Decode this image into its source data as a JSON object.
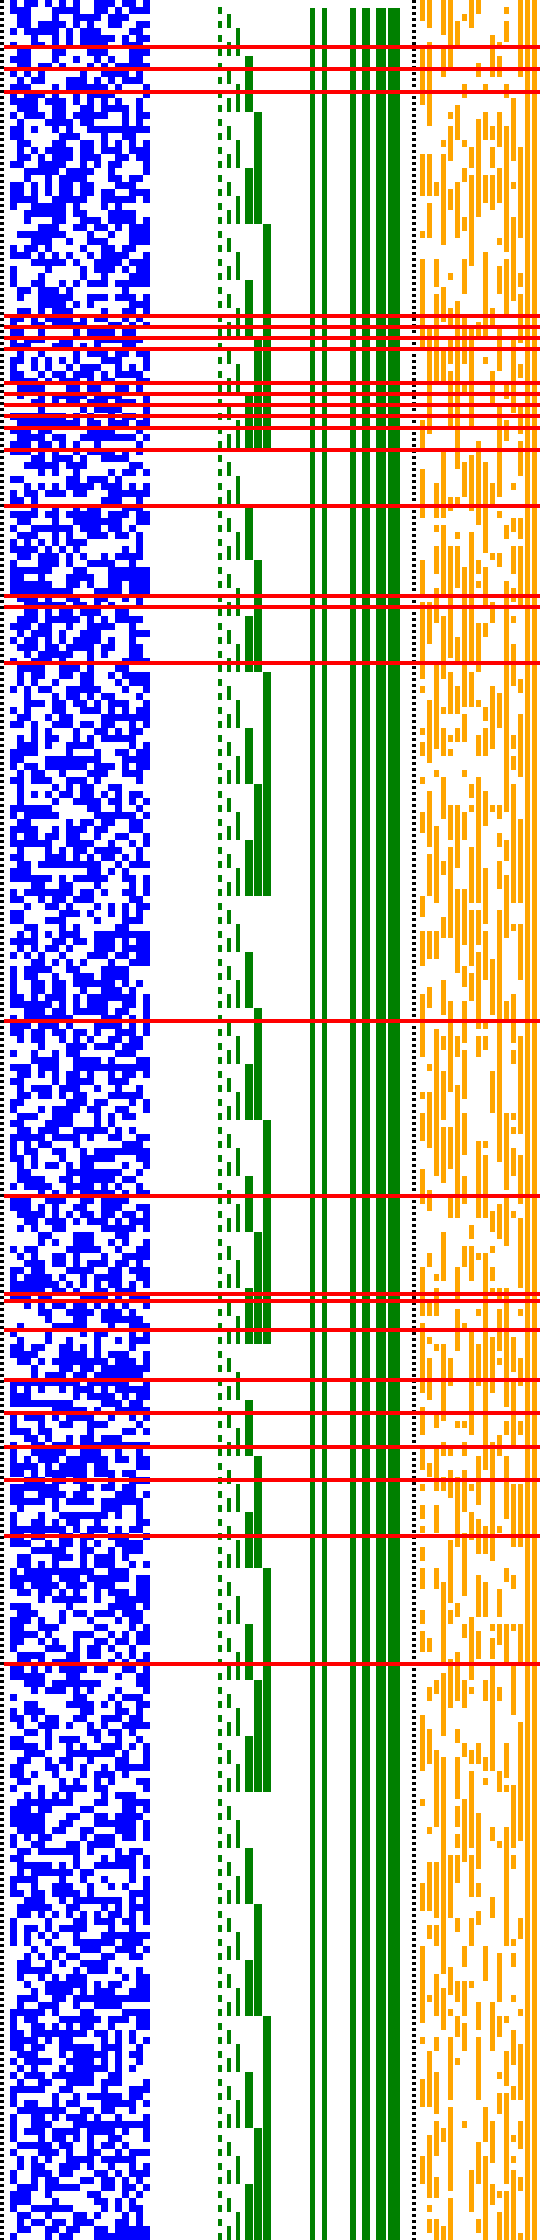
{
  "title": "",
  "colors": {
    "background": "#ffffff",
    "cells": "#0000ff",
    "tree": "#008000",
    "trail": "#ffa500",
    "separator": "#000000",
    "highlight": "#ff0000"
  },
  "panels": [
    {
      "name": "random-bit-grid",
      "description_color": "cells"
    },
    {
      "name": "counter-tree",
      "description_color": "tree"
    },
    {
      "name": "trail-grid",
      "description_color": "trail"
    }
  ],
  "highlight_row_fractions": [
    0.02,
    0.03,
    0.04,
    0.14,
    0.145,
    0.15,
    0.155,
    0.17,
    0.175,
    0.18,
    0.185,
    0.19,
    0.2,
    0.225,
    0.265,
    0.27,
    0.295,
    0.455,
    0.533,
    0.577,
    0.58,
    0.593,
    0.615,
    0.63,
    0.645,
    0.66,
    0.685,
    0.742
  ],
  "vertical_separators": [
    "left",
    "middle"
  ]
}
